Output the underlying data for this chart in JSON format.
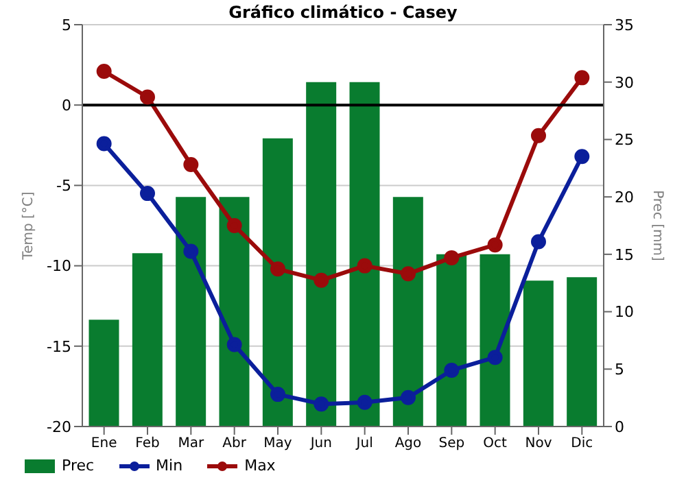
{
  "chart_data": {
    "type": "line",
    "title": "Gráfico climático - Casey",
    "ylabel": "Temp [°C]",
    "y2label": "Prec [mm]",
    "categories": [
      "Ene",
      "Feb",
      "Mar",
      "Abr",
      "May",
      "Jun",
      "Jul",
      "Ago",
      "Sep",
      "Oct",
      "Nov",
      "Dic"
    ],
    "series": [
      {
        "name": "Prec",
        "type": "bar",
        "axis": "y2",
        "color": "#097c2f",
        "values": [
          9.3,
          15.1,
          20,
          20,
          25.1,
          30,
          30,
          20,
          15,
          15,
          12.7,
          13
        ]
      },
      {
        "name": "Min",
        "color": "#0b1f9b",
        "values": [
          -2.4,
          -5.5,
          -9.1,
          -14.9,
          -18,
          -18.6,
          -18.5,
          -18.2,
          -16.5,
          -15.7,
          -8.5,
          -3.2
        ]
      },
      {
        "name": "Max",
        "color": "#9b0b0b",
        "values": [
          2.1,
          0.5,
          -3.7,
          -7.5,
          -10.2,
          -10.9,
          -10,
          -10.5,
          -9.5,
          -8.7,
          -1.9,
          1.7
        ]
      }
    ],
    "ylim": [
      -20,
      5
    ],
    "yticks": [
      -20,
      -15,
      -10,
      -5,
      0,
      5
    ],
    "y2lim": [
      0,
      35
    ],
    "y2ticks": [
      0,
      5,
      10,
      15,
      20,
      25,
      30,
      35
    ],
    "ref_lines": [
      {
        "axis": "y",
        "value": 0,
        "color": "#000000"
      }
    ],
    "grid": "y",
    "legend": "bottom left",
    "marker": "circle"
  }
}
